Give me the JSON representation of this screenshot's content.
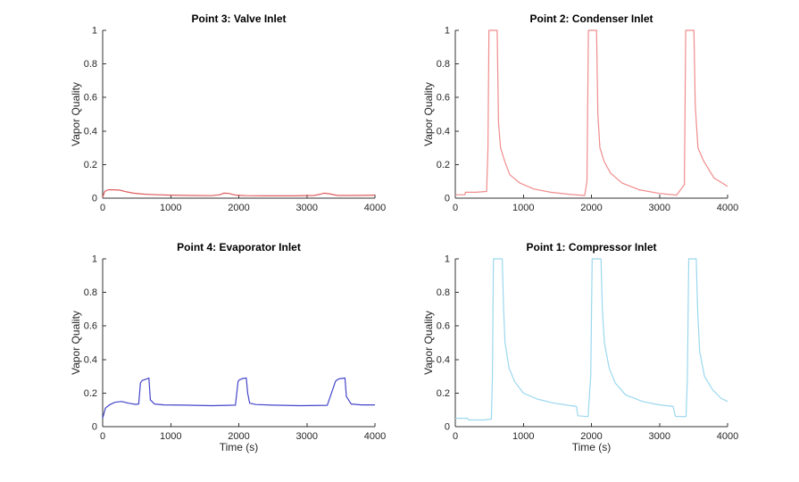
{
  "figure": {
    "background": "#ffffff",
    "axis_color": "#333333"
  },
  "chart_data": [
    {
      "type": "line",
      "title": "Point 3: Valve Inlet",
      "xlabel": "",
      "ylabel": "Vapor Quality",
      "xlim": [
        0,
        4000
      ],
      "ylim": [
        0,
        1
      ],
      "xticks": [
        0,
        1000,
        2000,
        3000,
        4000
      ],
      "yticks": [
        0,
        0.2,
        0.4,
        0.6,
        0.8,
        1
      ],
      "grid": false,
      "color": "#e05c5c",
      "x": [
        0,
        30,
        80,
        150,
        250,
        350,
        450,
        600,
        800,
        1000,
        1300,
        1600,
        1720,
        1780,
        1850,
        1950,
        2100,
        2400,
        2800,
        3100,
        3180,
        3250,
        3330,
        3450,
        3700,
        4000
      ],
      "y": [
        0.005,
        0.04,
        0.05,
        0.05,
        0.048,
        0.038,
        0.03,
        0.024,
        0.02,
        0.018,
        0.016,
        0.015,
        0.02,
        0.03,
        0.028,
        0.018,
        0.015,
        0.014,
        0.014,
        0.016,
        0.022,
        0.03,
        0.026,
        0.016,
        0.016,
        0.018
      ]
    },
    {
      "type": "line",
      "title": "Point 2: Condenser Inlet",
      "xlabel": "",
      "ylabel": "Vapor Quality",
      "xlim": [
        0,
        4000
      ],
      "ylim": [
        0,
        1
      ],
      "xticks": [
        0,
        1000,
        2000,
        3000,
        4000
      ],
      "yticks": [
        0,
        0.2,
        0.4,
        0.6,
        0.8,
        1
      ],
      "grid": false,
      "color": "#f08c8c",
      "x": [
        0,
        140,
        150,
        300,
        460,
        480,
        495,
        615,
        635,
        665,
        725,
        800,
        950,
        1150,
        1400,
        1700,
        1900,
        1935,
        1955,
        2075,
        2095,
        2125,
        2185,
        2280,
        2450,
        2700,
        3000,
        3250,
        3365,
        3385,
        3505,
        3525,
        3565,
        3650,
        3800,
        4000
      ],
      "y": [
        0.02,
        0.02,
        0.035,
        0.035,
        0.04,
        0.3,
        1,
        1,
        0.45,
        0.3,
        0.22,
        0.14,
        0.09,
        0.055,
        0.035,
        0.022,
        0.016,
        0.1,
        1,
        1,
        0.5,
        0.3,
        0.22,
        0.15,
        0.09,
        0.05,
        0.028,
        0.018,
        0.08,
        1,
        1,
        0.55,
        0.3,
        0.22,
        0.12,
        0.07
      ]
    },
    {
      "type": "line",
      "title": "Point 4: Evaporator Inlet",
      "xlabel": "Time (s)",
      "ylabel": "Vapor Quality",
      "xlim": [
        0,
        4000
      ],
      "ylim": [
        0,
        1
      ],
      "xticks": [
        0,
        1000,
        2000,
        3000,
        4000
      ],
      "yticks": [
        0,
        0.2,
        0.4,
        0.6,
        0.8,
        1
      ],
      "grid": false,
      "color": "#4444cc",
      "x": [
        0,
        40,
        100,
        180,
        280,
        380,
        480,
        530,
        555,
        580,
        650,
        680,
        700,
        760,
        900,
        1200,
        1600,
        1950,
        1990,
        2010,
        2060,
        2110,
        2130,
        2160,
        2250,
        2500,
        2900,
        3300,
        3420,
        3445,
        3475,
        3525,
        3560,
        3580,
        3650,
        3800,
        4000
      ],
      "y": [
        0.05,
        0.11,
        0.13,
        0.145,
        0.15,
        0.14,
        0.133,
        0.135,
        0.26,
        0.275,
        0.285,
        0.29,
        0.16,
        0.135,
        0.13,
        0.128,
        0.125,
        0.128,
        0.27,
        0.28,
        0.287,
        0.29,
        0.2,
        0.14,
        0.132,
        0.128,
        0.125,
        0.127,
        0.27,
        0.28,
        0.285,
        0.288,
        0.29,
        0.18,
        0.135,
        0.13,
        0.13
      ]
    },
    {
      "type": "line",
      "title": "Point 1: Compressor Inlet",
      "xlabel": "Time (s)",
      "ylabel": "Vapor Quality",
      "xlim": [
        0,
        4000
      ],
      "ylim": [
        0,
        1
      ],
      "xticks": [
        0,
        1000,
        2000,
        3000,
        4000
      ],
      "yticks": [
        0,
        0.2,
        0.4,
        0.6,
        0.8,
        1
      ],
      "grid": false,
      "color": "#9bd8ee",
      "x": [
        0,
        180,
        195,
        420,
        530,
        545,
        560,
        690,
        710,
        730,
        790,
        870,
        1000,
        1200,
        1450,
        1700,
        1780,
        1800,
        1950,
        1990,
        2010,
        2140,
        2160,
        2190,
        2260,
        2350,
        2500,
        2750,
        3000,
        3200,
        3230,
        3250,
        3390,
        3410,
        3430,
        3540,
        3560,
        3590,
        3660,
        3780,
        3900,
        4000
      ],
      "y": [
        0.05,
        0.05,
        0.04,
        0.04,
        0.045,
        0.3,
        1,
        1,
        0.7,
        0.5,
        0.35,
        0.27,
        0.2,
        0.165,
        0.14,
        0.125,
        0.12,
        0.065,
        0.06,
        0.3,
        1,
        1,
        0.7,
        0.5,
        0.35,
        0.26,
        0.19,
        0.15,
        0.13,
        0.12,
        0.065,
        0.06,
        0.06,
        0.3,
        1,
        1,
        0.7,
        0.45,
        0.3,
        0.22,
        0.17,
        0.15
      ]
    }
  ]
}
